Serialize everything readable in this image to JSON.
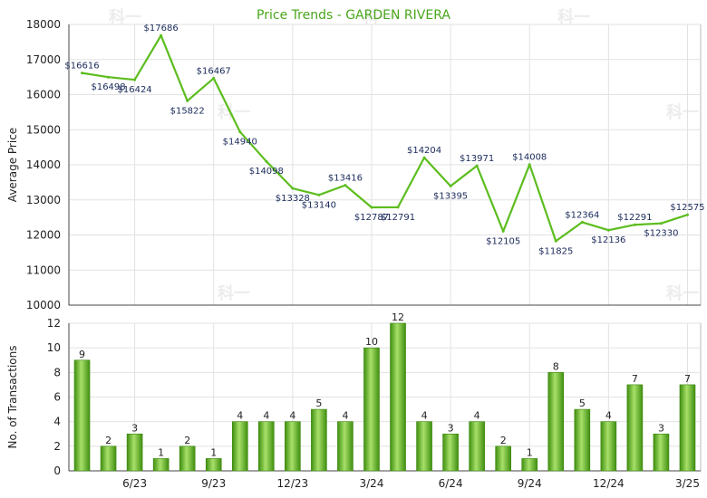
{
  "chart_data": [
    {
      "type": "line",
      "title": "Price Trends - GARDEN RIVERA",
      "ylabel": "Average Price",
      "ylim": [
        10000,
        18000
      ],
      "yticks": [
        10000,
        11000,
        12000,
        13000,
        14000,
        15000,
        16000,
        17000,
        18000
      ],
      "grid": true,
      "color": "#5cbd1e",
      "values": [
        16616,
        16498,
        16424,
        17686,
        15822,
        16467,
        14940,
        14098,
        13328,
        13140,
        13416,
        12787,
        12791,
        14204,
        13395,
        13971,
        12105,
        14008,
        11825,
        12364,
        12136,
        12291,
        12330,
        12575
      ],
      "point_labels": [
        "$16616",
        "$16498",
        "$16424",
        "$17686",
        "$15822",
        "$16467",
        "$14940",
        "$14098",
        "$13328",
        "$13140",
        "$13416",
        "$12787",
        "$12791",
        "$14204",
        "$13395",
        "$13971",
        "$12105",
        "$14008",
        "$11825",
        "$12364",
        "$12136",
        "$12291",
        "$12330",
        "$12575"
      ]
    },
    {
      "type": "bar",
      "ylabel": "No. of Transactions",
      "ylim": [
        0,
        12
      ],
      "yticks": [
        0,
        2,
        4,
        6,
        8,
        10,
        12
      ],
      "grid": true,
      "color": "#6cc02a",
      "values": [
        9,
        2,
        3,
        1,
        2,
        1,
        4,
        4,
        4,
        5,
        4,
        10,
        12,
        4,
        3,
        4,
        2,
        1,
        8,
        5,
        4,
        7,
        3,
        7
      ],
      "xtick_labels": [
        "6/23",
        "9/23",
        "12/23",
        "3/24",
        "6/24",
        "9/24",
        "12/24",
        "3/25"
      ]
    }
  ],
  "watermark_text": "科一"
}
